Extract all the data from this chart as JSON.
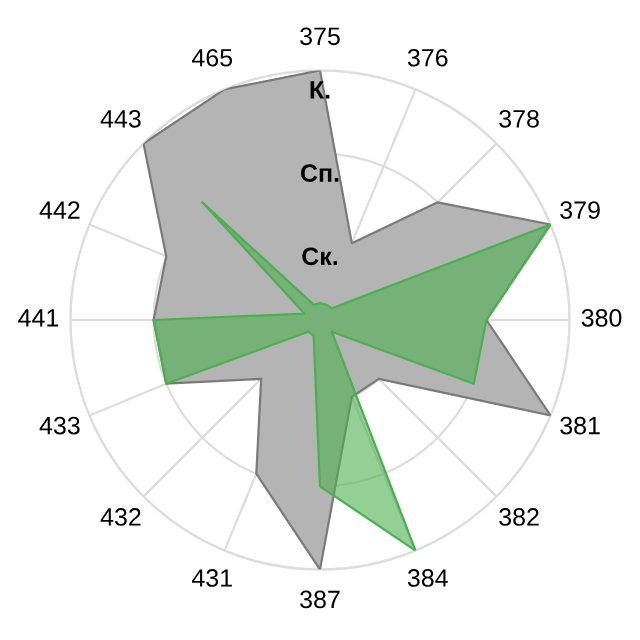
{
  "chart_data": {
    "type": "radar",
    "categories": [
      "375",
      "376",
      "378",
      "379",
      "380",
      "381",
      "382",
      "384",
      "387",
      "431",
      "432",
      "433",
      "441",
      "442",
      "443",
      "465"
    ],
    "series": [
      {
        "color": "#b4b4b4",
        "values": [
          3,
          1,
          2,
          3,
          2,
          3,
          1,
          1,
          3,
          2,
          1,
          2,
          2,
          2,
          3,
          3
        ]
      },
      {
        "color": "#4caf50",
        "values": [
          0.2,
          0.2,
          0.2,
          3,
          2,
          2,
          0.2,
          3,
          2,
          0.2,
          0.2,
          2,
          2,
          0.2,
          2,
          0.2
        ]
      }
    ],
    "ylim": [
      0,
      3
    ],
    "yticks": [
      {
        "value": 1,
        "label": "Ск."
      },
      {
        "value": 2,
        "label": "Сп."
      },
      {
        "value": 3,
        "label": "К."
      }
    ],
    "grid": true,
    "legend": false
  }
}
